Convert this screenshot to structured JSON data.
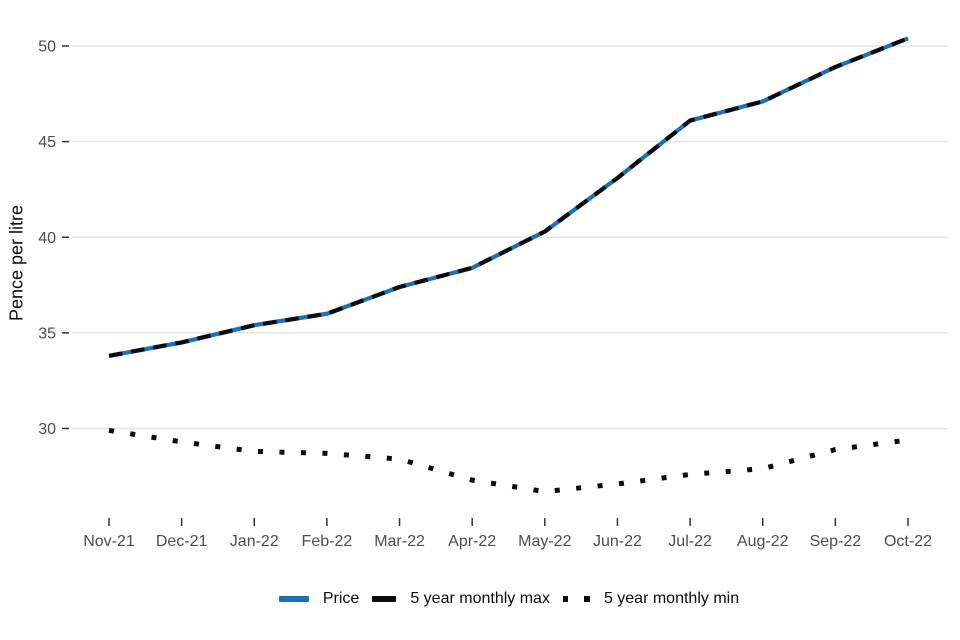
{
  "chart_data": {
    "type": "line",
    "title": "",
    "xlabel": "",
    "ylabel": "Pence per litre",
    "categories": [
      "Nov-21",
      "Dec-21",
      "Jan-22",
      "Feb-22",
      "Mar-22",
      "Apr-22",
      "May-22",
      "Jun-22",
      "Jul-22",
      "Aug-22",
      "Sep-22",
      "Oct-22"
    ],
    "yticks": [
      30,
      35,
      40,
      45,
      50
    ],
    "ylim": [
      26,
      51
    ],
    "grid": "horizontal-only",
    "legend_position": "bottom-center",
    "series": [
      {
        "key": "price",
        "name": "Price",
        "color": "#1d70b8",
        "style": "solid",
        "values": [
          33.8,
          34.5,
          35.4,
          36.0,
          37.4,
          38.4,
          40.3,
          43.1,
          46.1,
          47.1,
          48.9,
          50.4
        ]
      },
      {
        "key": "max",
        "name": "5 year monthly max",
        "color": "#0b0c0c",
        "style": "dashed",
        "values": [
          33.8,
          34.5,
          35.4,
          36.0,
          37.4,
          38.4,
          40.3,
          43.1,
          46.1,
          47.1,
          48.9,
          50.4
        ]
      },
      {
        "key": "min",
        "name": "5 year monthly min",
        "color": "#0b0c0c",
        "style": "dotted",
        "values": [
          29.9,
          29.3,
          28.8,
          28.7,
          28.4,
          27.3,
          26.7,
          27.1,
          27.6,
          27.9,
          28.9,
          29.4
        ]
      }
    ]
  }
}
